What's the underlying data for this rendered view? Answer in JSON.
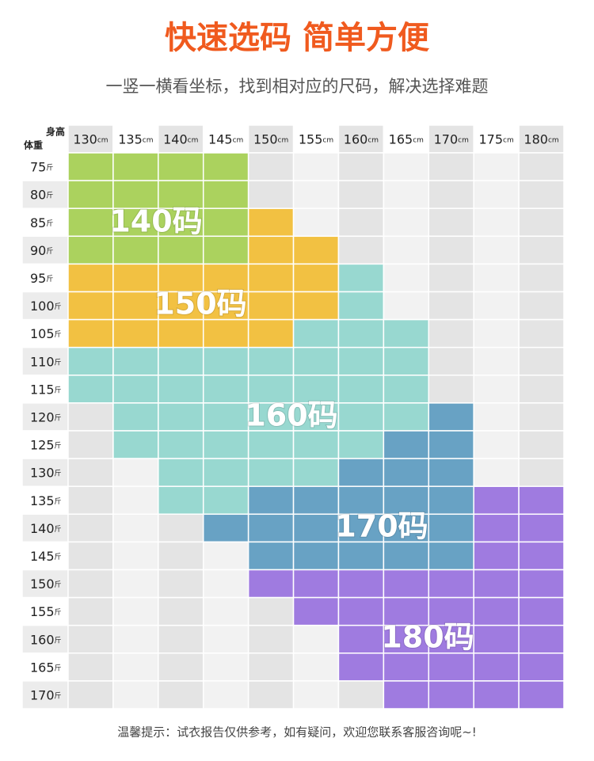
{
  "header": {
    "title": "快速选码 简单方便",
    "subtitle": "一竖一横看坐标，找到相对应的尺码，解决选择难题"
  },
  "table": {
    "corner_top": "身高",
    "corner_left": "体重",
    "columns": [
      130,
      135,
      140,
      145,
      150,
      155,
      160,
      165,
      170,
      175,
      180
    ],
    "column_unit": "cm",
    "rows": [
      75,
      80,
      85,
      90,
      95,
      100,
      105,
      110,
      115,
      120,
      125,
      130,
      135,
      140,
      145,
      150,
      155,
      160,
      165,
      170
    ],
    "row_unit": "斤",
    "zones": [
      {
        "label": "140码",
        "color": "#abd25e"
      },
      {
        "label": "150码",
        "color": "#f2c142"
      },
      {
        "label": "160码",
        "color": "#98d8d0"
      },
      {
        "label": "170码",
        "color": "#68a2c4"
      },
      {
        "label": "180码",
        "color": "#9f7be0"
      }
    ]
  },
  "footer": "温馨提示：试衣报告仅供参考，如有疑问，欢迎您联系客服咨询呢~!"
}
